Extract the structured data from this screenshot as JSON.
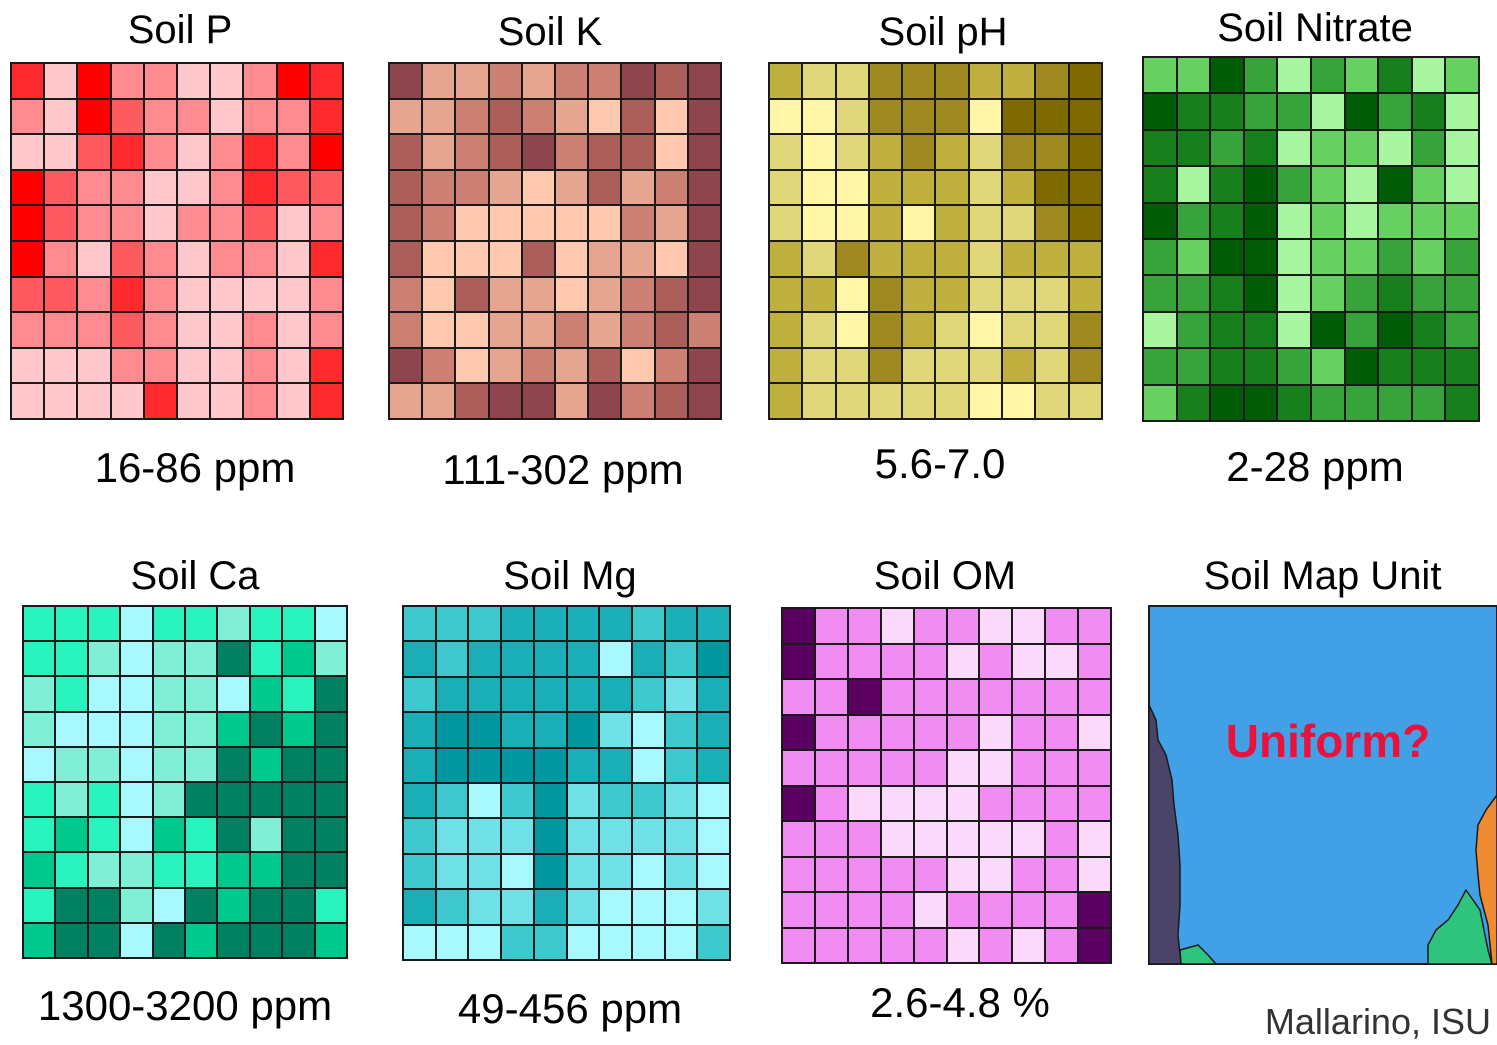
{
  "credit": "Mallarino, ISU",
  "panels": [
    {
      "title": "Soil P",
      "range": "16-86 ppm",
      "palette": [
        "#ffc8cc",
        "#ff8a90",
        "#ff5a60",
        "#ff2a2e",
        "#ff0000"
      ],
      "grid": [
        [
          3,
          0,
          4,
          1,
          1,
          0,
          0,
          1,
          4,
          3
        ],
        [
          1,
          0,
          4,
          2,
          1,
          1,
          0,
          1,
          1,
          3
        ],
        [
          0,
          0,
          2,
          3,
          1,
          0,
          1,
          3,
          1,
          4
        ],
        [
          4,
          2,
          1,
          1,
          0,
          0,
          1,
          3,
          2,
          2
        ],
        [
          4,
          2,
          1,
          1,
          0,
          1,
          1,
          2,
          0,
          1
        ],
        [
          4,
          1,
          0,
          2,
          1,
          0,
          1,
          1,
          0,
          3
        ],
        [
          2,
          2,
          1,
          3,
          1,
          0,
          0,
          0,
          0,
          1
        ],
        [
          1,
          1,
          1,
          2,
          1,
          0,
          0,
          1,
          0,
          1
        ],
        [
          0,
          0,
          0,
          1,
          1,
          0,
          0,
          1,
          0,
          3
        ],
        [
          0,
          0,
          0,
          0,
          3,
          0,
          0,
          1,
          0,
          3
        ]
      ]
    },
    {
      "title": "Soil K",
      "range": "111-302 ppm",
      "palette": [
        "#ffc9b0",
        "#e6a591",
        "#cc7f73",
        "#ab5e5a",
        "#8f454d"
      ],
      "grid": [
        [
          4,
          1,
          1,
          2,
          1,
          2,
          2,
          4,
          3,
          4
        ],
        [
          1,
          1,
          2,
          3,
          2,
          1,
          0,
          3,
          0,
          4
        ],
        [
          3,
          1,
          2,
          3,
          4,
          2,
          3,
          3,
          0,
          4
        ],
        [
          3,
          2,
          2,
          1,
          0,
          1,
          3,
          1,
          2,
          4
        ],
        [
          3,
          2,
          0,
          0,
          0,
          0,
          0,
          2,
          1,
          4
        ],
        [
          3,
          0,
          0,
          0,
          3,
          0,
          1,
          1,
          0,
          4
        ],
        [
          2,
          0,
          3,
          1,
          1,
          0,
          1,
          2,
          3,
          4
        ],
        [
          2,
          0,
          0,
          1,
          1,
          2,
          1,
          2,
          3,
          2
        ],
        [
          4,
          2,
          0,
          1,
          2,
          1,
          3,
          0,
          2,
          4
        ],
        [
          1,
          1,
          3,
          4,
          4,
          1,
          4,
          2,
          3,
          4
        ]
      ]
    },
    {
      "title": "Soil pH",
      "range": "5.6-7.0",
      "palette": [
        "#fff7a6",
        "#e0d77a",
        "#bfb040",
        "#9e8a20",
        "#7f6a00"
      ],
      "grid": [
        [
          2,
          1,
          1,
          3,
          3,
          3,
          2,
          2,
          3,
          4
        ],
        [
          0,
          0,
          1,
          3,
          3,
          3,
          0,
          4,
          4,
          4
        ],
        [
          1,
          0,
          1,
          2,
          3,
          2,
          1,
          3,
          3,
          4
        ],
        [
          1,
          0,
          0,
          2,
          2,
          2,
          1,
          2,
          4,
          4
        ],
        [
          1,
          0,
          0,
          2,
          0,
          2,
          1,
          1,
          3,
          4
        ],
        [
          2,
          1,
          3,
          2,
          2,
          2,
          1,
          2,
          2,
          2
        ],
        [
          2,
          2,
          0,
          3,
          2,
          2,
          1,
          1,
          1,
          2
        ],
        [
          2,
          1,
          0,
          3,
          2,
          1,
          0,
          1,
          1,
          3
        ],
        [
          2,
          1,
          1,
          3,
          1,
          1,
          1,
          2,
          1,
          3
        ],
        [
          2,
          1,
          1,
          1,
          1,
          1,
          0,
          0,
          1,
          1
        ]
      ]
    },
    {
      "title": "Soil Nitrate",
      "range": "2-28 ppm",
      "palette": [
        "#a8f7a0",
        "#66d060",
        "#37a33a",
        "#17801d",
        "#005c05"
      ],
      "grid": [
        [
          1,
          1,
          4,
          2,
          0,
          2,
          1,
          3,
          0,
          1
        ],
        [
          4,
          3,
          3,
          2,
          2,
          0,
          4,
          2,
          3,
          0
        ],
        [
          3,
          3,
          2,
          3,
          0,
          1,
          1,
          0,
          2,
          0
        ],
        [
          3,
          0,
          3,
          4,
          2,
          1,
          0,
          4,
          1,
          0
        ],
        [
          4,
          2,
          3,
          4,
          0,
          1,
          0,
          1,
          1,
          1
        ],
        [
          2,
          1,
          4,
          4,
          0,
          1,
          1,
          2,
          1,
          2
        ],
        [
          2,
          2,
          3,
          4,
          0,
          1,
          2,
          3,
          2,
          2
        ],
        [
          0,
          2,
          3,
          3,
          0,
          4,
          2,
          4,
          3,
          2
        ],
        [
          2,
          2,
          3,
          3,
          2,
          1,
          4,
          3,
          3,
          3
        ],
        [
          1,
          3,
          4,
          4,
          3,
          2,
          2,
          2,
          2,
          3
        ]
      ]
    },
    {
      "title": "Soil Ca",
      "range": "1300-3200 ppm",
      "palette": [
        "#a8f8ff",
        "#7ff0d6",
        "#29f3bc",
        "#00c98e",
        "#008060"
      ],
      "grid": [
        [
          2,
          2,
          2,
          0,
          2,
          2,
          1,
          2,
          2,
          0
        ],
        [
          2,
          2,
          1,
          0,
          1,
          1,
          4,
          2,
          3,
          1
        ],
        [
          1,
          2,
          0,
          0,
          1,
          1,
          0,
          3,
          2,
          4
        ],
        [
          1,
          0,
          0,
          0,
          1,
          1,
          3,
          4,
          3,
          4
        ],
        [
          0,
          1,
          1,
          0,
          1,
          1,
          4,
          3,
          4,
          4
        ],
        [
          2,
          1,
          2,
          0,
          1,
          4,
          4,
          4,
          4,
          4
        ],
        [
          2,
          3,
          2,
          0,
          3,
          2,
          4,
          1,
          4,
          4
        ],
        [
          3,
          2,
          1,
          1,
          2,
          2,
          3,
          3,
          4,
          4
        ],
        [
          2,
          4,
          4,
          1,
          0,
          4,
          3,
          4,
          4,
          2
        ],
        [
          3,
          4,
          4,
          0,
          4,
          3,
          4,
          4,
          4,
          3
        ]
      ]
    },
    {
      "title": "Soil Mg",
      "range": "49-456 ppm",
      "palette": [
        "#a8f8ff",
        "#6ee0e6",
        "#3ec9cf",
        "#1aafb7",
        "#00979e"
      ],
      "grid": [
        [
          2,
          2,
          2,
          3,
          3,
          3,
          3,
          2,
          3,
          3
        ],
        [
          3,
          2,
          3,
          3,
          3,
          3,
          0,
          3,
          2,
          4
        ],
        [
          2,
          3,
          3,
          3,
          3,
          3,
          3,
          2,
          1,
          3
        ],
        [
          3,
          4,
          4,
          3,
          3,
          4,
          1,
          0,
          2,
          3
        ],
        [
          3,
          4,
          4,
          4,
          4,
          3,
          3,
          0,
          2,
          3
        ],
        [
          3,
          2,
          0,
          2,
          4,
          1,
          2,
          2,
          1,
          0
        ],
        [
          2,
          1,
          1,
          1,
          4,
          1,
          1,
          1,
          1,
          0
        ],
        [
          2,
          1,
          1,
          0,
          4,
          1,
          1,
          0,
          1,
          0
        ],
        [
          3,
          2,
          1,
          1,
          3,
          1,
          0,
          0,
          0,
          1
        ],
        [
          0,
          0,
          0,
          2,
          2,
          0,
          0,
          0,
          0,
          2
        ]
      ]
    },
    {
      "title": "Soil OM",
      "range": "2.6-4.8 %",
      "palette": [
        "#fad9fa",
        "#f5b6f7",
        "#f08cf2",
        "#e063e8",
        "#5a0060"
      ],
      "grid": [
        [
          4,
          2,
          2,
          0,
          2,
          2,
          0,
          0,
          2,
          2
        ],
        [
          4,
          2,
          2,
          2,
          2,
          0,
          2,
          0,
          0,
          2
        ],
        [
          2,
          2,
          4,
          2,
          2,
          2,
          2,
          2,
          2,
          2
        ],
        [
          4,
          2,
          2,
          2,
          2,
          2,
          0,
          2,
          2,
          0
        ],
        [
          2,
          2,
          2,
          2,
          2,
          0,
          0,
          2,
          2,
          2
        ],
        [
          4,
          2,
          0,
          0,
          0,
          0,
          2,
          2,
          2,
          2
        ],
        [
          2,
          2,
          2,
          0,
          0,
          0,
          0,
          0,
          2,
          0
        ],
        [
          2,
          2,
          2,
          2,
          2,
          0,
          0,
          2,
          2,
          0
        ],
        [
          2,
          2,
          2,
          2,
          0,
          2,
          2,
          2,
          2,
          4
        ],
        [
          2,
          2,
          2,
          2,
          2,
          0,
          2,
          0,
          2,
          4
        ]
      ]
    }
  ],
  "map_unit": {
    "title": "Soil Map Unit",
    "label": "Uniform?",
    "colors": {
      "main": "#42a0e6",
      "left_band": "#4a4468",
      "green": "#2ec47e",
      "orange": "#f08a30",
      "label": "#e8123c"
    }
  }
}
